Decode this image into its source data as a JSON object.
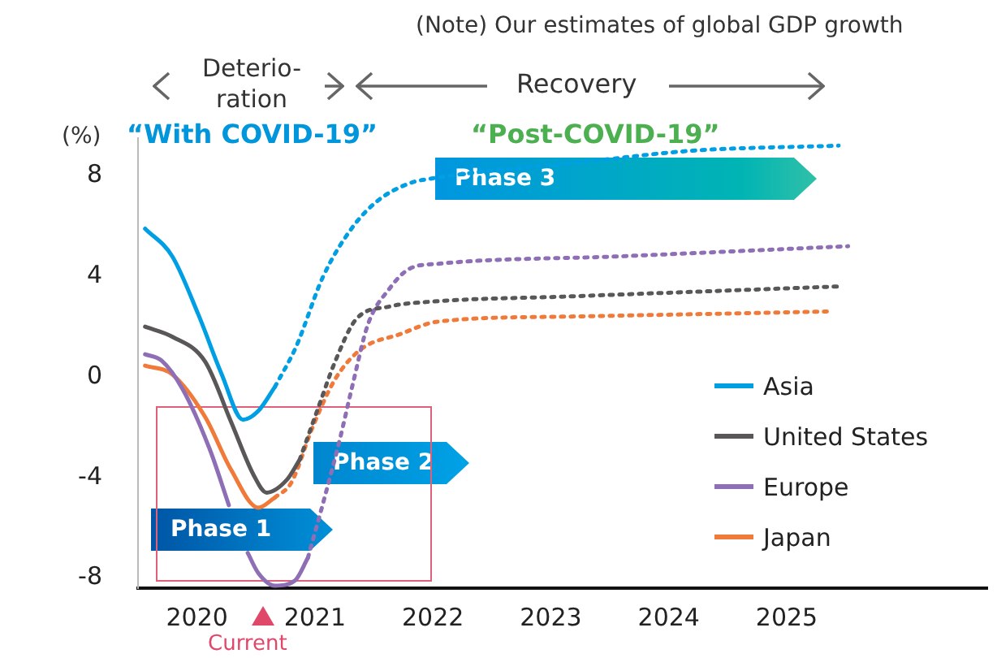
{
  "chart_data": {
    "type": "line",
    "ylabel": "(%)",
    "annotations": [
      "(Note) Our estimates of global GDP growth",
      "Deterio-\nration",
      "Recovery",
      "“With COVID-19”",
      "“Post-COVID-19”",
      "Phase 1",
      "Phase 2",
      "Phase 3",
      "Current"
    ],
    "xlim": [
      2019.5,
      2026.7
    ],
    "xticks": [
      2020,
      2021,
      2022,
      2023,
      2024,
      2025
    ],
    "ylim": [
      -8.4,
      9.5
    ],
    "yticks": [
      -8,
      -4,
      0,
      4,
      8
    ],
    "grid": false,
    "legend": "bottom right",
    "marker": "none",
    "line_style": "solid",
    "series": [
      {
        "name": "Asia",
        "color": "#009fe3",
        "x": [
          2019.56,
          2019.79,
          2020.01,
          2020.21,
          2020.39,
          2020.52,
          2020.66
        ],
        "values": [
          5.9,
          4.8,
          2.5,
          0.1,
          -1.7,
          -1.35,
          -0.4
        ]
      },
      {
        "name": "United States",
        "color": "#595757",
        "x": [
          2019.56,
          2019.79,
          2020.07,
          2020.29,
          2020.48,
          2020.59,
          2020.76,
          2020.87
        ],
        "values": [
          2.0,
          1.6,
          0.6,
          -1.8,
          -3.9,
          -4.6,
          -4.1,
          -3.3
        ]
      },
      {
        "name": "Europe",
        "color": "#8e6fb5",
        "x": [
          2019.56,
          2019.7,
          2019.88,
          2020.11,
          2020.27,
          2020.34,
          2020.43,
          2020.52,
          2020.66,
          2020.83,
          2020.94
        ],
        "values": [
          0.9,
          0.65,
          -0.5,
          -2.9,
          -5.1,
          null,
          -7.0,
          -7.8,
          -8.3,
          -8.1,
          -7.2
        ]
      },
      {
        "name": "Japan",
        "color": "#f07a3a",
        "x": [
          2019.56,
          2019.79,
          2020.07,
          2020.29,
          2020.52,
          2020.66
        ],
        "values": [
          0.45,
          0.1,
          -1.6,
          -3.7,
          -5.2,
          -4.8
        ]
      },
      {
        "color": "#009fe3",
        "line_style": "dotted",
        "x": [
          2020.66,
          2020.84,
          2021.07,
          2021.31,
          2021.53,
          2021.8,
          2022.0,
          2023.37,
          2024.2,
          2025.44
        ],
        "values": [
          -0.4,
          1.2,
          4.0,
          5.9,
          7.0,
          7.7,
          7.9,
          8.6,
          9.0,
          9.2
        ]
      },
      {
        "color": "#595757",
        "line_style": "dotted",
        "x": [
          2020.87,
          2021.03,
          2021.17,
          2021.35,
          2021.63,
          2022.0,
          2023.14,
          2025.44
        ],
        "values": [
          -3.3,
          -1.2,
          0.6,
          2.3,
          2.8,
          3.0,
          3.2,
          3.6
        ]
      },
      {
        "color": "#8e6fb5",
        "line_style": "dotted",
        "x": [
          2020.94,
          2021.07,
          2021.21,
          2021.32,
          2021.45,
          2021.63,
          2021.8,
          2022.04,
          2023.6,
          2025.52
        ],
        "values": [
          -7.2,
          -5.0,
          -2.5,
          -0.3,
          2.1,
          3.5,
          4.3,
          4.5,
          4.8,
          5.2
        ]
      },
      {
        "color": "#f07a3a",
        "line_style": "dotted",
        "x": [
          2020.66,
          2020.8,
          2020.98,
          2021.17,
          2021.39,
          2021.72,
          2022.04,
          2023.14,
          2025.34
        ],
        "values": [
          -4.8,
          -4.2,
          -2.0,
          -0.1,
          1.1,
          1.7,
          2.2,
          2.4,
          2.6
        ]
      }
    ]
  }
}
